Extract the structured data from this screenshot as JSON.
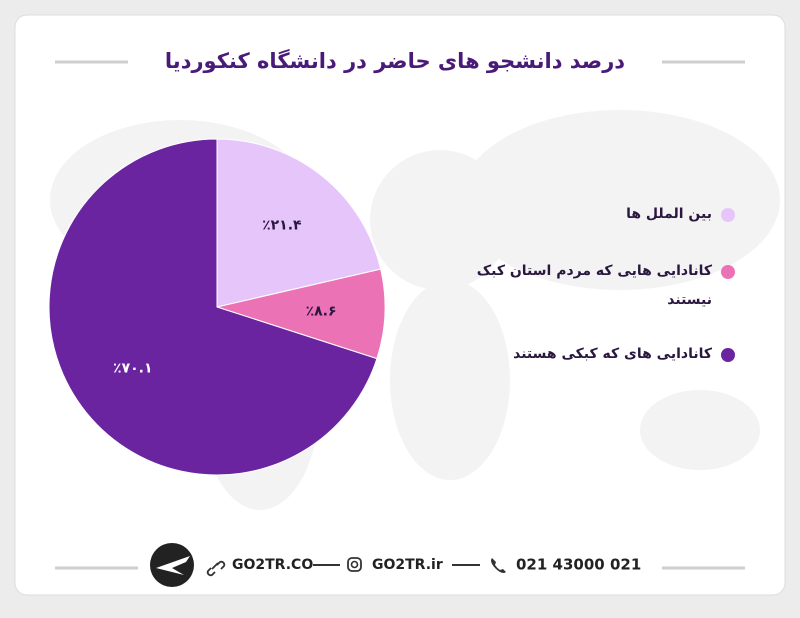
{
  "chart_data": {
    "type": "pie",
    "title": "درصد دانشجو های حاضر در دانشگاه کنکوردیا",
    "categories": [
      "بین الملل ها",
      "کانادایی هایی که مردم استان کبک نیستند",
      "کانادایی های که کبکی هستند"
    ],
    "values": [
      21.4,
      8.6,
      70.1
    ],
    "value_labels": [
      "٪۲۱.۴",
      "٪۸.۶",
      "٪۷۰.۱"
    ],
    "colors": [
      "#e6c6fa",
      "#ec72b6",
      "#6b24a0"
    ]
  },
  "footer": {
    "website": "GO2TR.CO",
    "instagram": "GO2TR.ir",
    "phone": "021 43000 021"
  }
}
